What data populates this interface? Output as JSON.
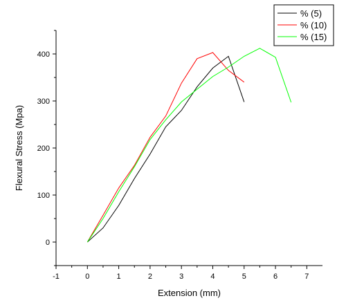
{
  "chart_data": {
    "type": "line",
    "xlabel": "Extension (mm)",
    "ylabel": "Flexural Stress (Mpa)",
    "xlim": [
      -1.0,
      7.5
    ],
    "ylim": [
      -50,
      450
    ],
    "xticks": [
      -1,
      0,
      1,
      2,
      3,
      4,
      5,
      6,
      7
    ],
    "yticks": [
      0,
      100,
      200,
      300,
      400
    ],
    "grid": false,
    "legend_position": "top-right",
    "series": [
      {
        "name": "% (5)",
        "color": "#000000",
        "x": [
          0,
          0.5,
          1,
          1.5,
          2,
          2.5,
          3,
          3.5,
          4,
          4.5,
          5
        ],
        "y": [
          0,
          30,
          78,
          135,
          187,
          245,
          280,
          330,
          370,
          395,
          298
        ]
      },
      {
        "name": "% (10)",
        "color": "#ff0000",
        "x": [
          0,
          0.5,
          1,
          1.5,
          2,
          2.5,
          3,
          3.5,
          4,
          4.5,
          5
        ],
        "y": [
          0,
          57,
          115,
          163,
          223,
          268,
          338,
          390,
          403,
          365,
          340
        ]
      },
      {
        "name": "% (15)",
        "color": "#00ff00",
        "x": [
          0,
          0.5,
          1,
          1.5,
          2,
          2.5,
          3,
          3.5,
          4,
          4.5,
          5,
          5.5,
          6,
          6.5
        ],
        "y": [
          0,
          50,
          107,
          160,
          218,
          260,
          298,
          325,
          352,
          372,
          395,
          412,
          393,
          297
        ]
      }
    ]
  }
}
